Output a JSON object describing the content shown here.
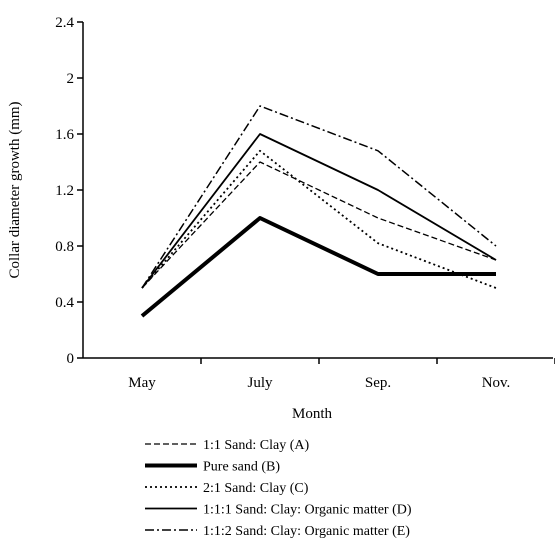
{
  "chart_data": {
    "type": "line",
    "title": "",
    "xlabel": "Month",
    "ylabel": "Collar diameter growth (mm)",
    "categories": [
      "May",
      "July",
      "Sep.",
      "Nov."
    ],
    "ylim": [
      0,
      2.4
    ],
    "yticks": [
      "0",
      "0.4",
      "0.8",
      "1.2",
      "1.6",
      "2",
      "2.4"
    ],
    "grid": false,
    "legend_position": "bottom",
    "series": [
      {
        "name": "1:1 Sand: Clay (A)",
        "values": [
          0.5,
          1.4,
          1.0,
          0.7
        ],
        "style": "dashed",
        "color": "#000000"
      },
      {
        "name": "Pure sand (B)",
        "values": [
          0.3,
          1.0,
          0.6,
          0.6
        ],
        "style": "bold",
        "color": "#000000"
      },
      {
        "name": "2:1 Sand: Clay (C)",
        "values": [
          0.5,
          1.48,
          0.82,
          0.5
        ],
        "style": "dotted",
        "color": "#000000"
      },
      {
        "name": "1:1:1 Sand: Clay: Organic matter (D)",
        "values": [
          0.5,
          1.6,
          1.2,
          0.7
        ],
        "style": "solid",
        "color": "#000000"
      },
      {
        "name": "1:1:2 Sand: Clay: Organic matter (E)",
        "values": [
          0.5,
          1.8,
          1.48,
          0.8
        ],
        "style": "dashdot",
        "color": "#000000"
      }
    ]
  }
}
